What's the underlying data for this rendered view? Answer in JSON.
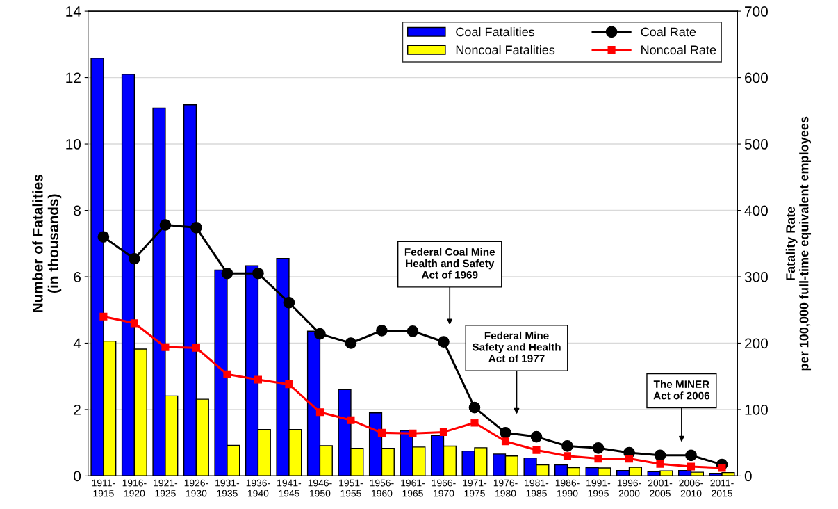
{
  "chart_data": {
    "type": "bar",
    "categories": [
      "1911-\n1915",
      "1916-\n1920",
      "1921-\n1925",
      "1926-\n1930",
      "1931-\n1935",
      "1936-\n1940",
      "1941-\n1945",
      "1946-\n1950",
      "1951-\n1955",
      "1956-\n1960",
      "1961-\n1965",
      "1966-\n1970",
      "1971-\n1975",
      "1976-\n1980",
      "1981-\n1985",
      "1986-\n1990",
      "1991-\n1995",
      "1996-\n2000",
      "2001-\n2005",
      "2006-\n2010",
      "2011-\n2015"
    ],
    "series": [
      {
        "name": "Coal Fatalities",
        "color": "#0000ff",
        "values": [
          12.58,
          12.1,
          11.08,
          11.18,
          6.2,
          6.33,
          6.55,
          4.36,
          2.6,
          1.9,
          1.37,
          1.22,
          0.75,
          0.66,
          0.54,
          0.33,
          0.25,
          0.16,
          0.13,
          0.16,
          0.08
        ]
      },
      {
        "name": "Noncoal Fatalities",
        "color": "#ffff00",
        "values": [
          4.06,
          3.82,
          2.41,
          2.31,
          0.92,
          1.4,
          1.4,
          0.91,
          0.83,
          0.83,
          0.87,
          0.9,
          0.85,
          0.6,
          0.33,
          0.25,
          0.24,
          0.26,
          0.15,
          0.11,
          0.1
        ]
      },
      {
        "name": "Coal Rate",
        "type": "line",
        "axis": "y2",
        "color": "#000000",
        "marker": "circle",
        "values": [
          360,
          327,
          378,
          374,
          305,
          305,
          261,
          214,
          200,
          219,
          218,
          202,
          103,
          65,
          59,
          45,
          42,
          35,
          31,
          31,
          17
        ]
      },
      {
        "name": "Noncoal Rate",
        "type": "line",
        "axis": "y2",
        "color": "#ff0000",
        "marker": "square",
        "values": [
          240,
          230,
          194,
          193,
          153,
          145,
          138,
          96,
          84,
          65,
          64,
          66,
          80,
          52,
          39,
          30,
          26,
          26,
          18,
          14,
          12
        ]
      }
    ],
    "ylabel": "Number of Fatalities\n(in thousands)",
    "y2label": "Fatality Rate\nper 100,000 full-time equivalent employees",
    "ylim": [
      0,
      14
    ],
    "yticks": [
      0,
      2,
      4,
      6,
      8,
      10,
      12,
      14
    ],
    "y2lim": [
      0,
      700
    ],
    "y2ticks": [
      0,
      100,
      200,
      300,
      400,
      500,
      600,
      700
    ],
    "grid": "y",
    "legend": "top right",
    "annotations": [
      "Federal Coal Mine\nHealth and Safety\nAct of 1969",
      "Federal Mine\nSafety and Health\nAct of 1977",
      "The MINER\nAct of 2006"
    ]
  }
}
